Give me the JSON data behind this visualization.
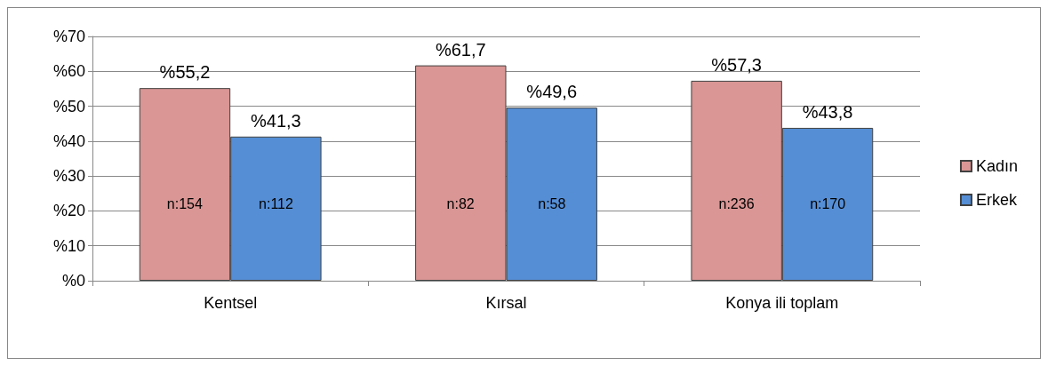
{
  "chart_data": {
    "type": "bar",
    "categories": [
      "Kentsel",
      "Kırsal",
      "Konya ili toplam"
    ],
    "series": [
      {
        "name": "Kadın",
        "color": "#d99694",
        "values": [
          55.2,
          61.7,
          57.3
        ],
        "value_labels": [
          "%55,2",
          "%61,7",
          "%57,3"
        ]
      },
      {
        "name": "Erkek",
        "color": "#558ed5",
        "values": [
          41.3,
          49.6,
          43.8
        ],
        "value_labels": [
          "%41,3",
          "%49,6",
          "%43,8"
        ]
      }
    ],
    "ylim": [
      0,
      70
    ],
    "yticks": [
      {
        "value": 0,
        "label": "%0"
      },
      {
        "value": 10,
        "label": "%10"
      },
      {
        "value": 20,
        "label": "%20"
      },
      {
        "value": 30,
        "label": "%30"
      },
      {
        "value": 40,
        "label": "%40"
      },
      {
        "value": 50,
        "label": "%50"
      },
      {
        "value": 60,
        "label": "%60"
      },
      {
        "value": 70,
        "label": "%70"
      }
    ],
    "grid": "y",
    "legend": "right",
    "annotations": [
      {
        "text": "n:154",
        "x": "Kentsel",
        "y": 22
      },
      {
        "text": "n:112",
        "x": "Kentsel",
        "y": 22
      },
      {
        "text": "n:82",
        "x": "Kırsal",
        "y": 22
      },
      {
        "text": "n:58",
        "x": "Kırsal",
        "y": 22
      },
      {
        "text": "n:236",
        "x": "Konya ili toplam",
        "y": 22
      },
      {
        "text": "n:170",
        "x": "Konya ili toplam",
        "y": 22
      }
    ]
  }
}
